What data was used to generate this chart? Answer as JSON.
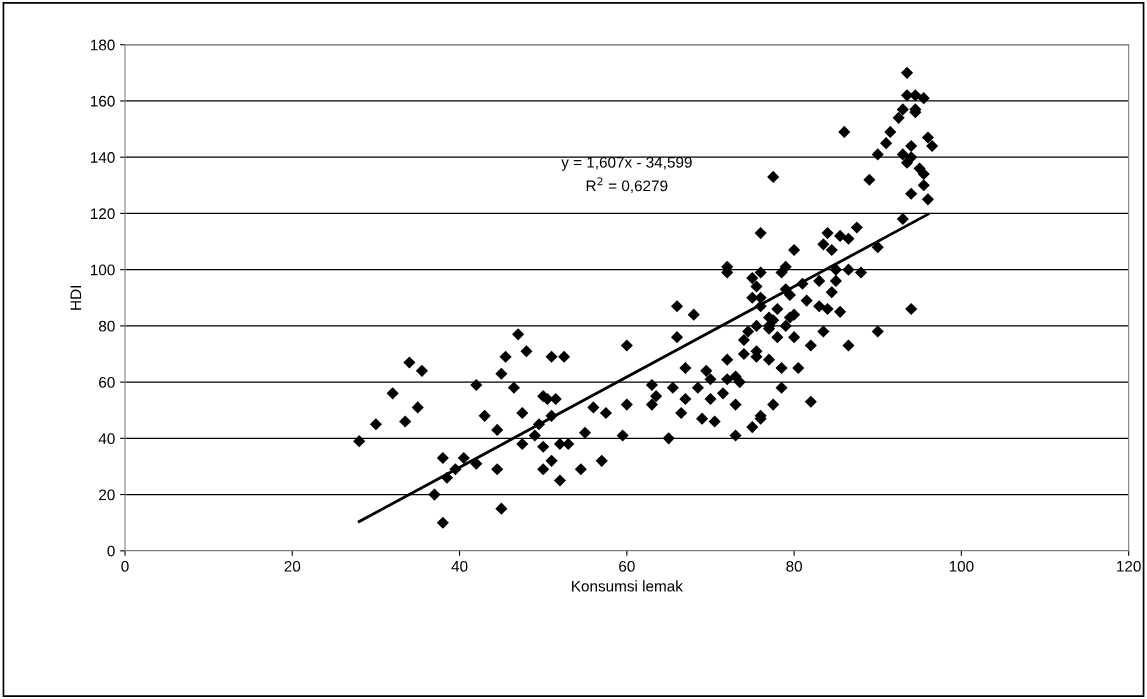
{
  "chart_data": {
    "type": "scatter",
    "xlabel": "Konsumsi lemak",
    "ylabel": "HDI",
    "xlim": [
      0,
      120
    ],
    "ylim": [
      0,
      180
    ],
    "xticks": [
      0,
      20,
      40,
      60,
      80,
      100,
      120
    ],
    "yticks": [
      0,
      20,
      40,
      60,
      80,
      100,
      120,
      140,
      160,
      180
    ],
    "grid": "y",
    "annotations": [
      "y = 1,607x - 34,599",
      "R$^{2}$ = 0,6279"
    ],
    "series": [
      {
        "marker": "diamond",
        "color": "#000000",
        "x": [
          28,
          30,
          32,
          33.5,
          34,
          35,
          35.5,
          37,
          38,
          38,
          38.5,
          39.5,
          40.5,
          42,
          42,
          43,
          44.5,
          44.5,
          45,
          45,
          45.5,
          46.5,
          47,
          47.5,
          47.5,
          48,
          49,
          49.5,
          50,
          50,
          50,
          50.5,
          51,
          51,
          51,
          51.5,
          52,
          52,
          52.5,
          53,
          54.5,
          55,
          56,
          57,
          57.5,
          59.5,
          60,
          60,
          63,
          63,
          63.5,
          65,
          65.5,
          66,
          66,
          66.5,
          67,
          67,
          68,
          68.5,
          69,
          69.5,
          70,
          70,
          70.5,
          71.5,
          72,
          72,
          72,
          72,
          73,
          73,
          73,
          73.5,
          74,
          74,
          74.5,
          75,
          75,
          75,
          75.5,
          75.5,
          75.5,
          75.5,
          76,
          76,
          76,
          76,
          76,
          76,
          77,
          77,
          77,
          77,
          77.5,
          77.5,
          77.5,
          78,
          78,
          78.5,
          78.5,
          78.5,
          79,
          79,
          79,
          79.5,
          79.5,
          80,
          80,
          80,
          80.5,
          81,
          81.5,
          82,
          82,
          83,
          83,
          83.5,
          83.5,
          84,
          84,
          84.5,
          84.5,
          85,
          85,
          85.5,
          85.5,
          86,
          86.5,
          86.5,
          86.5,
          87.5,
          88,
          89,
          90,
          90,
          90,
          91,
          91.5,
          92.5,
          93,
          93,
          93,
          93.5,
          93.5,
          93.5,
          94,
          94,
          94,
          94,
          94.5,
          94.5,
          94.5,
          95,
          95.5,
          95.5,
          95.5,
          96,
          96,
          96.5
        ],
        "values": [
          39,
          45,
          56,
          46,
          67,
          51,
          64,
          20,
          10,
          33,
          26,
          29,
          33,
          31,
          59,
          48,
          43,
          29,
          15,
          63,
          69,
          58,
          77,
          49,
          38,
          71,
          41,
          45,
          37,
          29,
          55,
          54,
          32,
          48,
          69,
          54,
          38,
          25,
          69,
          38,
          29,
          42,
          51,
          32,
          49,
          41,
          52,
          73,
          52,
          59,
          55,
          40,
          58,
          76,
          87,
          49,
          54,
          65,
          84,
          58,
          47,
          64,
          61,
          54,
          46,
          56,
          68,
          61,
          99,
          101,
          41,
          62,
          52,
          60,
          75,
          70,
          78,
          97,
          90,
          44,
          69,
          94,
          80,
          71,
          87,
          90,
          47,
          48,
          99,
          113,
          80,
          83,
          79,
          68,
          133,
          82,
          52,
          86,
          76,
          65,
          58,
          99,
          80,
          93,
          101,
          91,
          83,
          84,
          76,
          107,
          65,
          95,
          89,
          53,
          73,
          96,
          87,
          109,
          78,
          86,
          113,
          107,
          92,
          100,
          96,
          85,
          112,
          149,
          73,
          100,
          111,
          115,
          99,
          132,
          141,
          108,
          78,
          145,
          149,
          154,
          141,
          157,
          118,
          162,
          170,
          138,
          127,
          144,
          86,
          140,
          156,
          157,
          162,
          136,
          130,
          161,
          134,
          147,
          125,
          144
        ]
      },
      {
        "type": "line",
        "color": "#000000",
        "x": [
          28,
          96
        ],
        "values": [
          10.4,
          119.7
        ]
      }
    ]
  }
}
